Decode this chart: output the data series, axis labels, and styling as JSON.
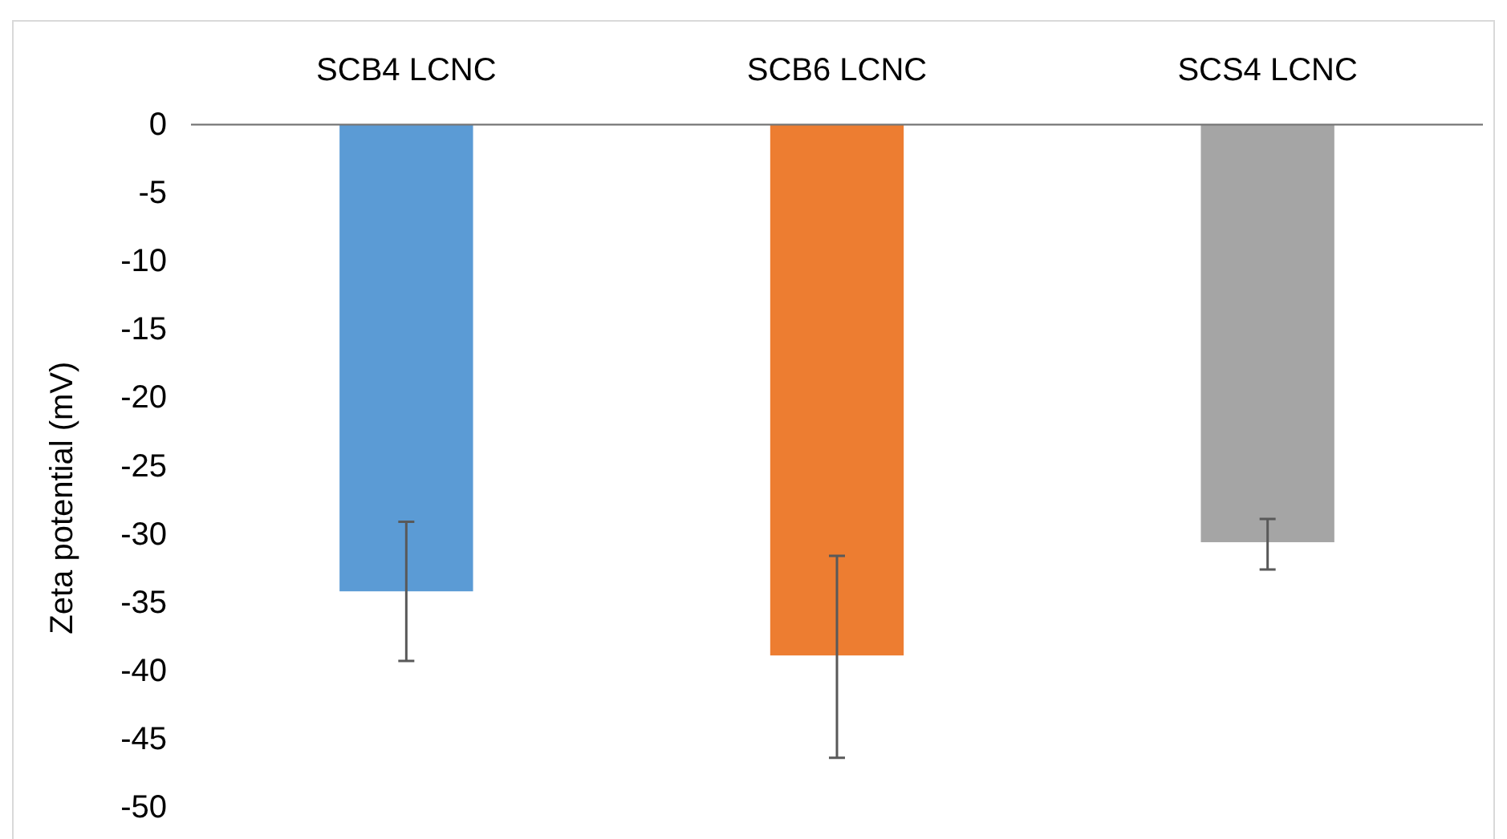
{
  "chart_data": {
    "type": "bar",
    "ylabel": "Zeta potential (mV)",
    "categories": [
      "SCB4 LCNC",
      "SCB6 LCNC",
      "SCS4 LCNC"
    ],
    "values": [
      -34.2,
      -38.9,
      -30.6
    ],
    "colors": [
      "#5b9bd5",
      "#ed7d31",
      "#a5a5a5"
    ],
    "errors": [
      [
        -39.3,
        -29.1
      ],
      [
        -46.4,
        -31.6
      ],
      [
        -32.6,
        -28.9
      ]
    ],
    "ylim": [
      -50,
      0
    ],
    "yticks": [
      -50,
      -45,
      -40,
      -35,
      -30,
      -25,
      -20,
      -15,
      -10,
      -5,
      0
    ],
    "grid": false
  }
}
